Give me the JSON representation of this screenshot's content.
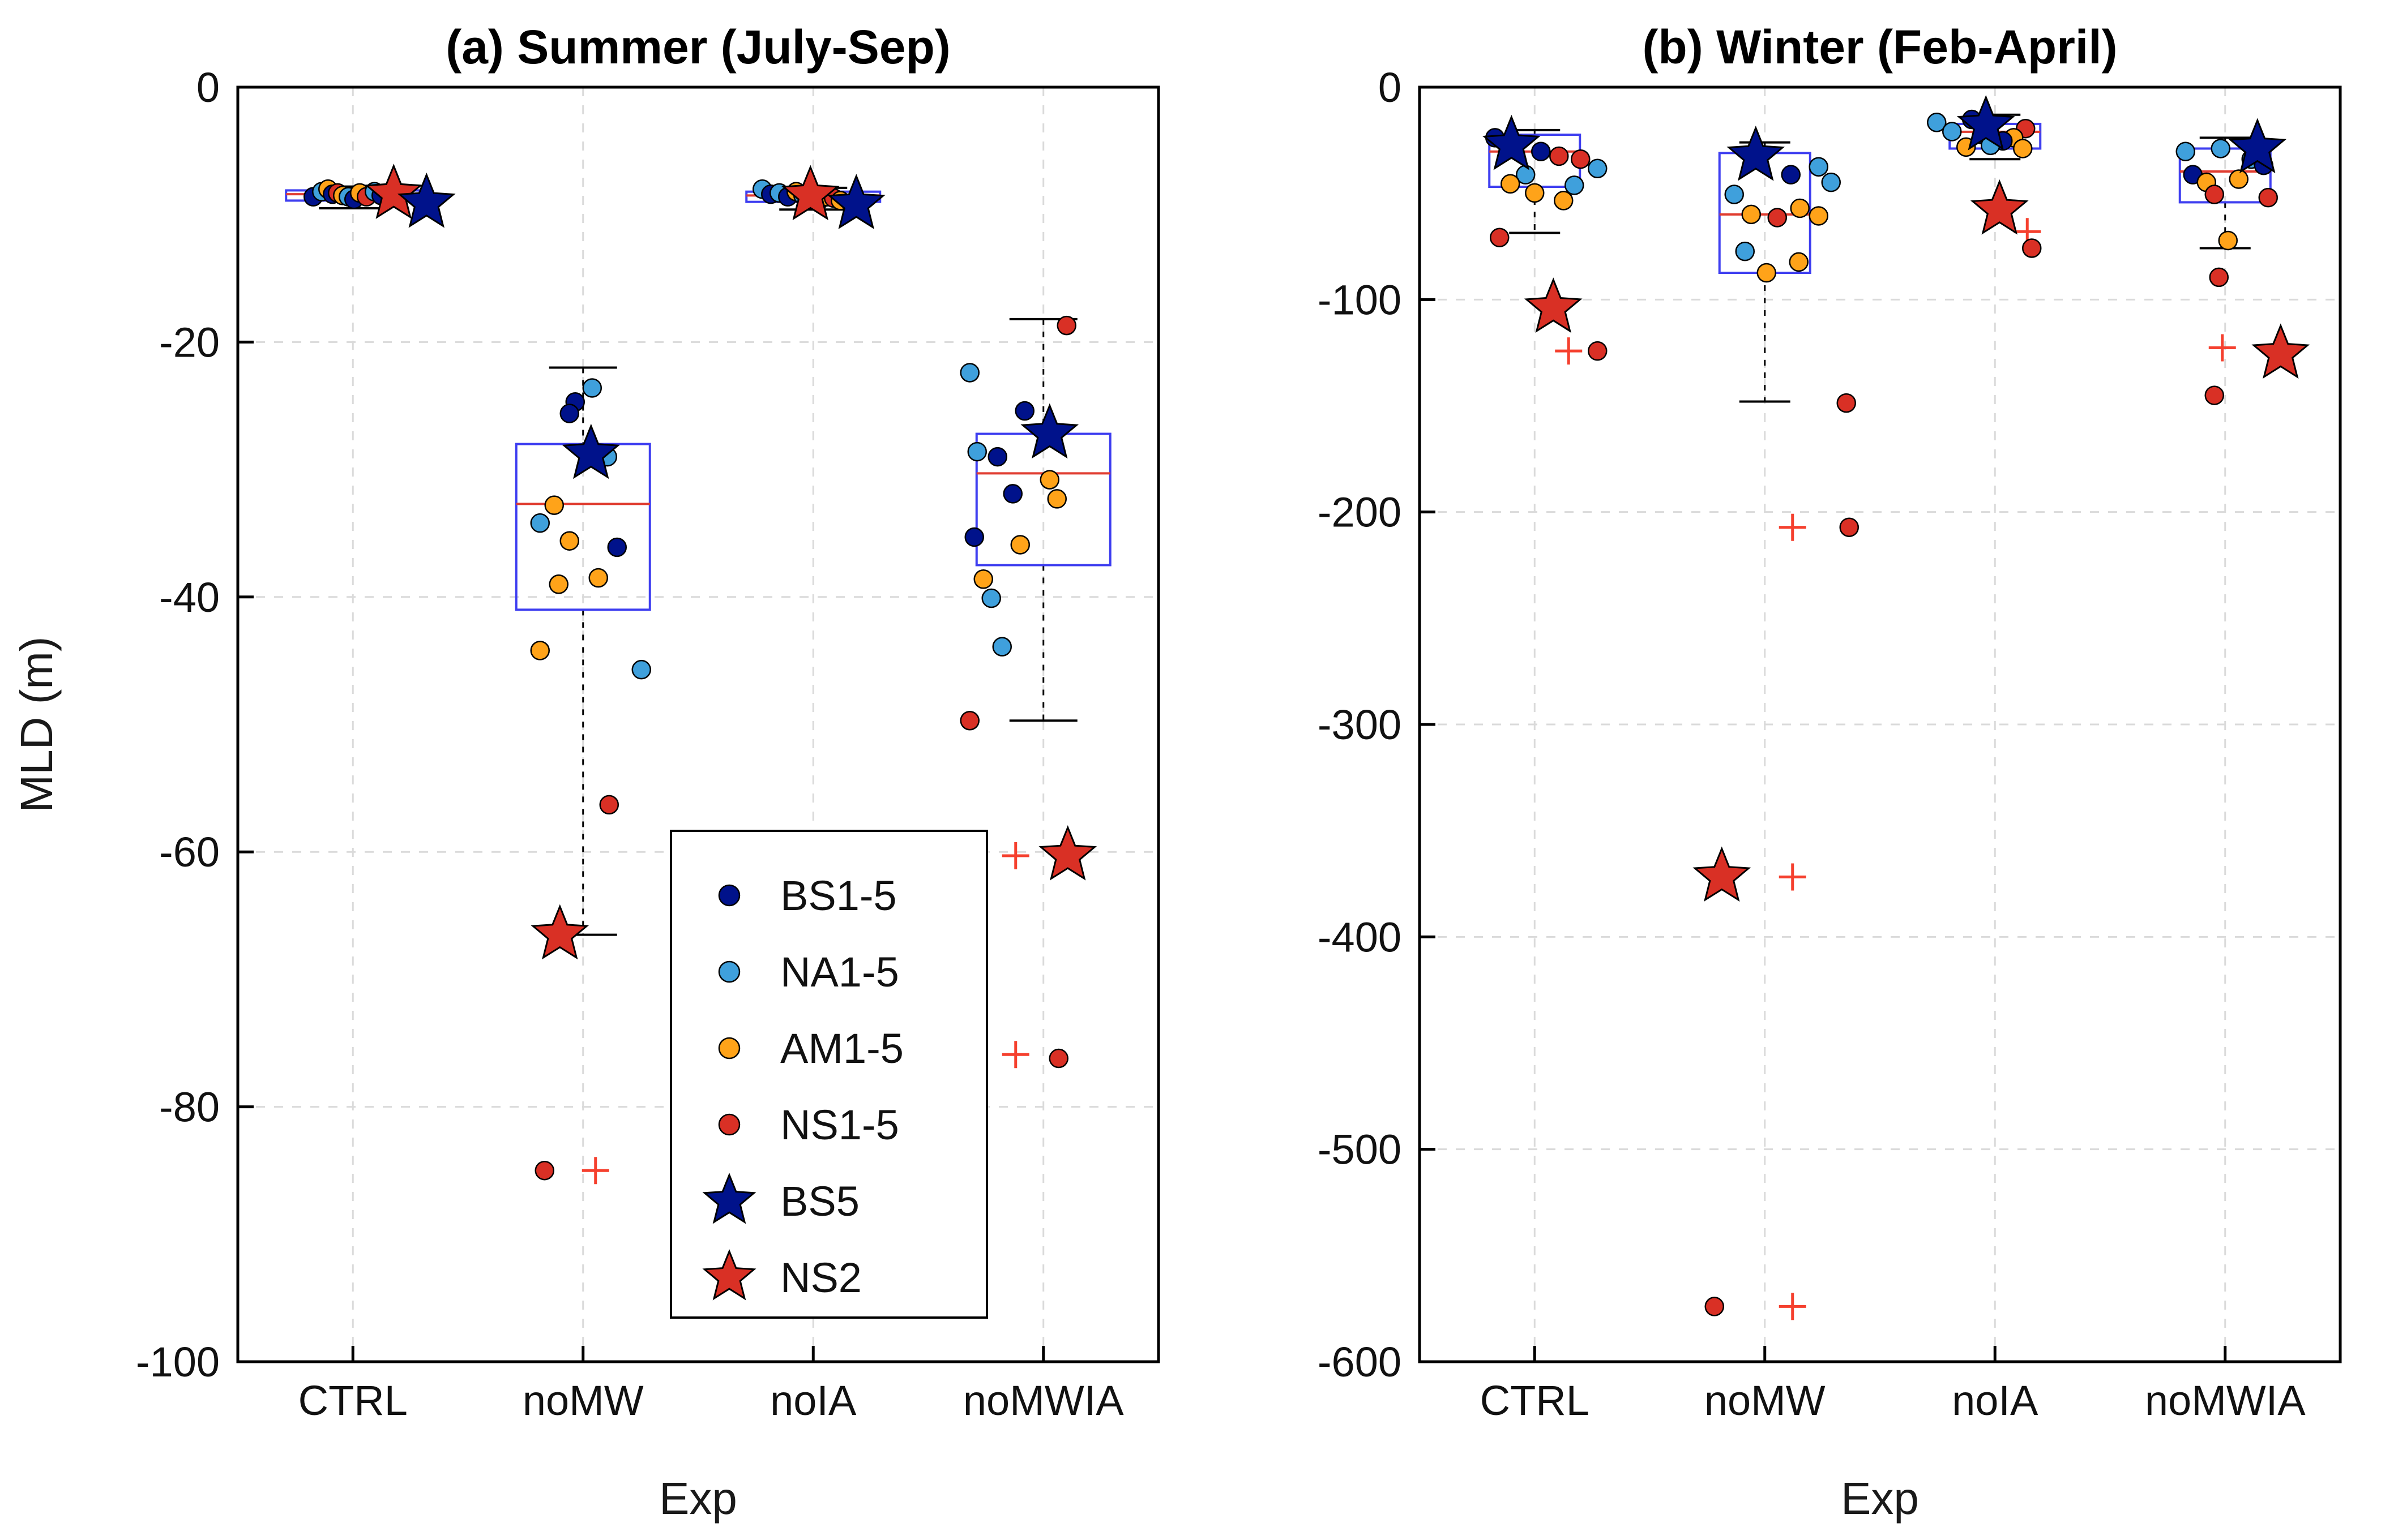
{
  "figure": {
    "background": "#FFFFFF"
  },
  "colors": {
    "groups": {
      "BS": "#00128B",
      "NA": "#3FA0DC",
      "AM": "#FFA319",
      "NS": "#D93025"
    },
    "box_edge": "#3E3EF0",
    "median": "#E03C30",
    "whisker": "#000000",
    "outlier": "#F5402E",
    "grid": "#DADADA",
    "axis": "#000000",
    "text": "#1a1a1a"
  },
  "legend": {
    "items": [
      {
        "label": "BS1-5",
        "marker": "dot",
        "group": "BS"
      },
      {
        "label": "NA1-5",
        "marker": "dot",
        "group": "NA"
      },
      {
        "label": "AM1-5",
        "marker": "dot",
        "group": "AM"
      },
      {
        "label": "NS1-5",
        "marker": "dot",
        "group": "NS"
      },
      {
        "label": "BS5",
        "marker": "star",
        "group": "BS"
      },
      {
        "label": "NS2",
        "marker": "star",
        "group": "NS"
      }
    ]
  },
  "chart_data": [
    {
      "type": "boxplot-scatter",
      "title": "(a) Summer (July-Sep)",
      "xlabel": "Exp",
      "ylabel": "MLD (m)",
      "categories": [
        "CTRL",
        "noMW",
        "noIA",
        "noMWIA"
      ],
      "ylim": [
        -100,
        0
      ],
      "yticks": [
        0,
        -20,
        -40,
        -60,
        -80,
        -100
      ],
      "grid": true,
      "boxes": [
        {
          "q3": -8.1,
          "median": -8.4,
          "q1": -8.9,
          "whisker_high": -7.8,
          "whisker_low": -9.5,
          "outliers": []
        },
        {
          "q3": -28.0,
          "median": -32.7,
          "q1": -41.0,
          "whisker_high": -22.0,
          "whisker_low": -66.5,
          "outliers": [
            {
              "dx": 22,
              "v": -85.0
            }
          ]
        },
        {
          "q3": -8.2,
          "median": -8.5,
          "q1": -9.0,
          "whisker_high": -7.9,
          "whisker_low": -9.6,
          "outliers": []
        },
        {
          "q3": -27.2,
          "median": -30.3,
          "q1": -37.5,
          "whisker_high": -18.2,
          "whisker_low": -49.7,
          "outliers": [
            {
              "dx": -49,
              "v": -60.3
            },
            {
              "dx": -49,
              "v": -75.9
            }
          ]
        }
      ],
      "points": [
        [
          {
            "g": "BS",
            "dx": -70,
            "v": -8.6
          },
          {
            "g": "NA",
            "dx": -55,
            "v": -8.2
          },
          {
            "g": "AM",
            "dx": -44,
            "v": -8.0
          },
          {
            "g": "BS",
            "dx": -36,
            "v": -8.4
          },
          {
            "g": "NS",
            "dx": -27,
            "v": -8.3
          },
          {
            "g": "AM",
            "dx": -18,
            "v": -8.5
          },
          {
            "g": "NA",
            "dx": -8,
            "v": -8.6
          },
          {
            "g": "BS",
            "dx": 2,
            "v": -8.8
          },
          {
            "g": "AM",
            "dx": 12,
            "v": -8.3
          },
          {
            "g": "NS",
            "dx": 24,
            "v": -8.6
          },
          {
            "g": "NA",
            "dx": 38,
            "v": -8.2
          },
          {
            "g": "BS",
            "dx": 50,
            "v": -8.5
          }
        ],
        [
          {
            "g": "BS",
            "dx": -14,
            "v": -24.7
          },
          {
            "g": "BS",
            "dx": -24,
            "v": -25.6
          },
          {
            "g": "NA",
            "dx": 16,
            "v": -23.6
          },
          {
            "g": "NA",
            "dx": 43,
            "v": -29.0
          },
          {
            "g": "NA",
            "dx": -76,
            "v": -34.2
          },
          {
            "g": "AM",
            "dx": -51,
            "v": -32.8
          },
          {
            "g": "AM",
            "dx": -24,
            "v": -35.6
          },
          {
            "g": "BS",
            "dx": 60,
            "v": -36.1
          },
          {
            "g": "AM",
            "dx": 27,
            "v": -38.5
          },
          {
            "g": "AM",
            "dx": -43,
            "v": -39.0
          },
          {
            "g": "NA",
            "dx": 103,
            "v": -45.7
          },
          {
            "g": "AM",
            "dx": -76,
            "v": -44.2
          },
          {
            "g": "NS",
            "dx": 46,
            "v": -56.3
          },
          {
            "g": "NS",
            "dx": -68,
            "v": -85.0
          }
        ],
        [
          {
            "g": "NA",
            "dx": -90,
            "v": -8.0
          },
          {
            "g": "BS",
            "dx": -75,
            "v": -8.4
          },
          {
            "g": "NA",
            "dx": -60,
            "v": -8.3
          },
          {
            "g": "BS",
            "dx": -45,
            "v": -8.6
          },
          {
            "g": "AM",
            "dx": -30,
            "v": -8.2
          },
          {
            "g": "NA",
            "dx": -18,
            "v": -8.5
          },
          {
            "g": "NS",
            "dx": -8,
            "v": -8.4
          },
          {
            "g": "BS",
            "dx": 10,
            "v": -8.9
          },
          {
            "g": "AM",
            "dx": 25,
            "v": -8.6
          },
          {
            "g": "NS",
            "dx": 36,
            "v": -8.7
          },
          {
            "g": "AM",
            "dx": 48,
            "v": -8.9
          }
        ],
        [
          {
            "g": "NS",
            "dx": 41,
            "v": -18.7
          },
          {
            "g": "NA",
            "dx": -130,
            "v": -22.4
          },
          {
            "g": "BS",
            "dx": -33,
            "v": -25.4
          },
          {
            "g": "NA",
            "dx": -117,
            "v": -28.6
          },
          {
            "g": "BS",
            "dx": -81,
            "v": -29.0
          },
          {
            "g": "AM",
            "dx": 11,
            "v": -30.8
          },
          {
            "g": "BS",
            "dx": -54,
            "v": -31.9
          },
          {
            "g": "AM",
            "dx": 24,
            "v": -32.3
          },
          {
            "g": "BS",
            "dx": -122,
            "v": -35.3
          },
          {
            "g": "AM",
            "dx": -41,
            "v": -35.9
          },
          {
            "g": "AM",
            "dx": -106,
            "v": -38.6
          },
          {
            "g": "NA",
            "dx": -92,
            "v": -40.1
          },
          {
            "g": "NA",
            "dx": -73,
            "v": -43.9
          },
          {
            "g": "NS",
            "dx": -130,
            "v": -49.7
          },
          {
            "g": "NS",
            "dx": 27,
            "v": -76.2
          }
        ]
      ],
      "stars": [
        [
          {
            "name": "NS2",
            "g": "NS",
            "dx": 72,
            "v": -8.4
          },
          {
            "name": "BS5",
            "g": "BS",
            "dx": 130,
            "v": -9.1
          }
        ],
        [
          {
            "name": "BS5",
            "g": "BS",
            "dx": 14,
            "v": -28.8
          },
          {
            "name": "NS2",
            "g": "NS",
            "dx": -41,
            "v": -66.5
          }
        ],
        [
          {
            "name": "NS2",
            "g": "NS",
            "dx": -5,
            "v": -8.5
          },
          {
            "name": "BS5",
            "g": "BS",
            "dx": 76,
            "v": -9.2
          }
        ],
        [
          {
            "name": "BS5",
            "g": "BS",
            "dx": 11,
            "v": -27.2
          },
          {
            "name": "NS2",
            "g": "NS",
            "dx": 43,
            "v": -60.3
          }
        ]
      ]
    },
    {
      "type": "boxplot-scatter",
      "title": "(b) Winter (Feb-April)",
      "xlabel": "Exp",
      "ylabel": "",
      "categories": [
        "CTRL",
        "noMW",
        "noIA",
        "noMWIA"
      ],
      "ylim": [
        -600,
        0
      ],
      "yticks": [
        0,
        -100,
        -200,
        -300,
        -400,
        -500,
        -600
      ],
      "grid": true,
      "boxes": [
        {
          "q3": -22.4,
          "median": -30.3,
          "q1": -46.9,
          "whisker_high": -20.2,
          "whisker_low": -68.6,
          "outliers": [
            {
              "dx": 60,
              "v": -124.2
            }
          ]
        },
        {
          "q3": -31.0,
          "median": -59.9,
          "q1": -87.4,
          "whisker_high": -26.0,
          "whisker_low": -148.0,
          "outliers": [
            {
              "dx": 49,
              "v": -207.2
            },
            {
              "dx": 49,
              "v": -371.8
            },
            {
              "dx": 49,
              "v": -574.0
            }
          ]
        },
        {
          "q3": -17.3,
          "median": -21.0,
          "q1": -28.9,
          "whisker_high": -13.0,
          "whisker_low": -33.9,
          "outliers": [
            {
              "dx": 57,
              "v": -68.0
            }
          ]
        },
        {
          "q3": -28.9,
          "median": -39.7,
          "q1": -54.2,
          "whisker_high": -23.8,
          "whisker_low": -75.8,
          "outliers": [
            {
              "dx": -5,
              "v": -122.7
            }
          ]
        }
      ],
      "points": [
        [
          {
            "g": "BS",
            "dx": -70,
            "v": -23.8
          },
          {
            "g": "BS",
            "dx": 11,
            "v": -30.3
          },
          {
            "g": "NS",
            "dx": 43,
            "v": -32.5
          },
          {
            "g": "NS",
            "dx": 81,
            "v": -33.9
          },
          {
            "g": "NA",
            "dx": 111,
            "v": -38.3
          },
          {
            "g": "NA",
            "dx": -16,
            "v": -41.2
          },
          {
            "g": "AM",
            "dx": -43,
            "v": -45.5
          },
          {
            "g": "NA",
            "dx": 70,
            "v": -46.2
          },
          {
            "g": "AM",
            "dx": 0,
            "v": -49.8
          },
          {
            "g": "AM",
            "dx": 51,
            "v": -53.4
          },
          {
            "g": "NS",
            "dx": -62,
            "v": -70.8
          },
          {
            "g": "NS",
            "dx": 111,
            "v": -124.2
          }
        ],
        [
          {
            "g": "NA",
            "dx": 95,
            "v": -37.5
          },
          {
            "g": "BS",
            "dx": 46,
            "v": -41.2
          },
          {
            "g": "NA",
            "dx": 117,
            "v": -44.8
          },
          {
            "g": "NA",
            "dx": -54,
            "v": -50.5
          },
          {
            "g": "AM",
            "dx": 62,
            "v": -57.0
          },
          {
            "g": "AM",
            "dx": -24,
            "v": -59.9
          },
          {
            "g": "AM",
            "dx": 95,
            "v": -60.6
          },
          {
            "g": "NS",
            "dx": 22,
            "v": -61.4
          },
          {
            "g": "NA",
            "dx": -35,
            "v": -77.3
          },
          {
            "g": "AM",
            "dx": 60,
            "v": -82.3
          },
          {
            "g": "AM",
            "dx": 3,
            "v": -87.4
          },
          {
            "g": "NS",
            "dx": 144,
            "v": -148.7
          },
          {
            "g": "NS",
            "dx": 149,
            "v": -207.2
          },
          {
            "g": "NS",
            "dx": -89,
            "v": -574.0
          }
        ],
        [
          {
            "g": "NA",
            "dx": -103,
            "v": -16.6
          },
          {
            "g": "BS",
            "dx": -41,
            "v": -15.2
          },
          {
            "g": "NA",
            "dx": -76,
            "v": -20.9
          },
          {
            "g": "BS",
            "dx": -22,
            "v": -22.4
          },
          {
            "g": "NS",
            "dx": 54,
            "v": -19.5
          },
          {
            "g": "AM",
            "dx": 33,
            "v": -23.8
          },
          {
            "g": "BS",
            "dx": 14,
            "v": -25.3
          },
          {
            "g": "NA",
            "dx": -8,
            "v": -27.4
          },
          {
            "g": "AM",
            "dx": -51,
            "v": -28.2
          },
          {
            "g": "AM",
            "dx": 49,
            "v": -28.9
          },
          {
            "g": "NS",
            "dx": 65,
            "v": -75.8
          }
        ],
        [
          {
            "g": "NA",
            "dx": -70,
            "v": -30.3
          },
          {
            "g": "NA",
            "dx": -8,
            "v": -28.9
          },
          {
            "g": "NA",
            "dx": 46,
            "v": -33.9
          },
          {
            "g": "BS",
            "dx": -57,
            "v": -41.2
          },
          {
            "g": "BS",
            "dx": 68,
            "v": -36.8
          },
          {
            "g": "AM",
            "dx": -33,
            "v": -44.8
          },
          {
            "g": "AM",
            "dx": 24,
            "v": -43.3
          },
          {
            "g": "NS",
            "dx": -19,
            "v": -50.5
          },
          {
            "g": "NS",
            "dx": 76,
            "v": -52.0
          },
          {
            "g": "AM",
            "dx": 5,
            "v": -72.2
          },
          {
            "g": "NS",
            "dx": -11,
            "v": -89.5
          },
          {
            "g": "NS",
            "dx": -19,
            "v": -145.1
          }
        ]
      ],
      "stars": [
        [
          {
            "name": "BS5",
            "g": "BS",
            "dx": -41,
            "v": -27.4
          },
          {
            "name": "NS2",
            "g": "NS",
            "dx": 33,
            "v": -104.0
          }
        ],
        [
          {
            "name": "BS5",
            "g": "BS",
            "dx": -16,
            "v": -32.5
          },
          {
            "name": "NS2",
            "g": "NS",
            "dx": -76,
            "v": -371.8
          }
        ],
        [
          {
            "name": "BS5",
            "g": "BS",
            "dx": -16,
            "v": -18.1
          },
          {
            "name": "NS2",
            "g": "NS",
            "dx": 8,
            "v": -57.8
          }
        ],
        [
          {
            "name": "BS5",
            "g": "BS",
            "dx": 57,
            "v": -28.9
          },
          {
            "name": "NS2",
            "g": "NS",
            "dx": 98,
            "v": -125.6
          }
        ]
      ]
    }
  ]
}
